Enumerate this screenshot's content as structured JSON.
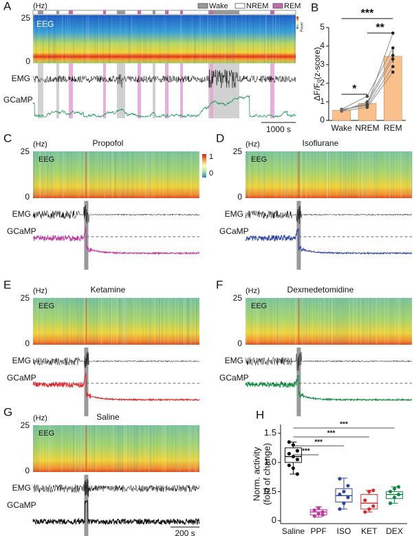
{
  "panels": {
    "A": {
      "label": "A",
      "unit": "(Hz)",
      "freq_top": "25",
      "freq_bottom": "0",
      "eeg": "EEG",
      "emg": "EMG",
      "gcamp": "GCaMP",
      "power": "Power",
      "scale_bar": "1000 s",
      "legend": [
        "Wake",
        "NREM",
        "REM"
      ]
    },
    "C": {
      "label": "C",
      "unit": "(Hz)",
      "freq_top": "25",
      "freq_bottom": "0",
      "title": "Propofol",
      "eeg": "EEG",
      "emg": "EMG",
      "gcamp": "GCaMP",
      "colorbar": [
        "1",
        "0"
      ],
      "color": "#c0399e"
    },
    "D": {
      "label": "D",
      "unit": "(Hz)",
      "freq_top": "25",
      "freq_bottom": "0",
      "title": "Isoflurane",
      "eeg": "EEG",
      "emg": "EMG",
      "gcamp": "GCaMP",
      "color": "#2b47a8"
    },
    "E": {
      "label": "E",
      "unit": "(Hz)",
      "freq_top": "25",
      "freq_bottom": "0",
      "title": "Ketamine",
      "eeg": "EEG",
      "emg": "EMG",
      "gcamp": "GCaMP",
      "color": "#e0262a"
    },
    "F": {
      "label": "F",
      "unit": "(Hz)",
      "freq_top": "25",
      "freq_bottom": "0",
      "title": "Dexmedetomidine",
      "eeg": "EEG",
      "emg": "EMG",
      "gcamp": "GCaMP",
      "color": "#138a43"
    },
    "G": {
      "label": "G",
      "unit": "(Hz)",
      "freq_top": "25",
      "freq_bottom": "0",
      "title": "Saline",
      "eeg": "EEG",
      "emg": "EMG",
      "gcamp": "GCaMP",
      "color": "#111111",
      "scale_bar": "200 s"
    }
  },
  "chart_data": [
    {
      "type": "bar",
      "label": "B",
      "ylabel": "ΔF/F₀(z-score)",
      "categories": [
        "Wake",
        "NREM",
        "REM"
      ],
      "values": [
        0.55,
        0.92,
        3.45
      ],
      "errors": [
        0.03,
        0.12,
        0.35
      ],
      "color": "#f9c08c",
      "mice": [
        [
          0.5,
          0.7,
          2.6
        ],
        [
          0.55,
          0.9,
          3.3
        ],
        [
          0.5,
          1.0,
          3.5
        ],
        [
          0.6,
          1.3,
          3.9
        ],
        [
          0.55,
          0.85,
          4.7
        ],
        [
          0.6,
          0.8,
          2.9
        ]
      ],
      "ylim": [
        0,
        5
      ],
      "yticks": [
        0,
        1,
        2,
        3,
        4,
        5
      ],
      "significance": [
        "*",
        "**",
        "***"
      ]
    },
    {
      "type": "box",
      "label": "H",
      "ylabel": [
        "Norm. activity",
        "(fold of change)"
      ],
      "categories": [
        "Saline",
        "PPF",
        "ISO",
        "KET",
        "DEX"
      ],
      "colors": [
        "#111111",
        "#c0399e",
        "#2b47a8",
        "#e0262a",
        "#138a43"
      ],
      "boxes": [
        {
          "min": 0.8,
          "q1": 1.0,
          "median": 1.1,
          "q3": 1.25,
          "max": 1.35
        },
        {
          "min": 0.06,
          "q1": 0.1,
          "median": 0.15,
          "q3": 0.19,
          "max": 0.24
        },
        {
          "min": 0.2,
          "q1": 0.32,
          "median": 0.43,
          "q3": 0.55,
          "max": 0.73
        },
        {
          "min": 0.15,
          "q1": 0.2,
          "median": 0.3,
          "q3": 0.45,
          "max": 0.52
        },
        {
          "min": 0.3,
          "q1": 0.38,
          "median": 0.45,
          "q3": 0.5,
          "max": 0.58
        }
      ],
      "points": [
        [
          1.35,
          1.3,
          1.2,
          1.15,
          1.1,
          1.05,
          0.95,
          0.9,
          0.8
        ],
        [
          0.08,
          0.12,
          0.15,
          0.18,
          0.22,
          0.1
        ],
        [
          0.2,
          0.3,
          0.4,
          0.45,
          0.5,
          0.6,
          0.72
        ],
        [
          0.15,
          0.2,
          0.25,
          0.35,
          0.5,
          0.52
        ],
        [
          0.3,
          0.4,
          0.45,
          0.5,
          0.55,
          0.58
        ]
      ],
      "ylim": [
        -0.05,
        1.65
      ],
      "yticks": [
        0,
        0.5,
        {
          "value": 1,
          "label": "1.0"
        },
        1.5
      ],
      "significance": [
        "***",
        "***",
        "***",
        "***"
      ]
    }
  ]
}
